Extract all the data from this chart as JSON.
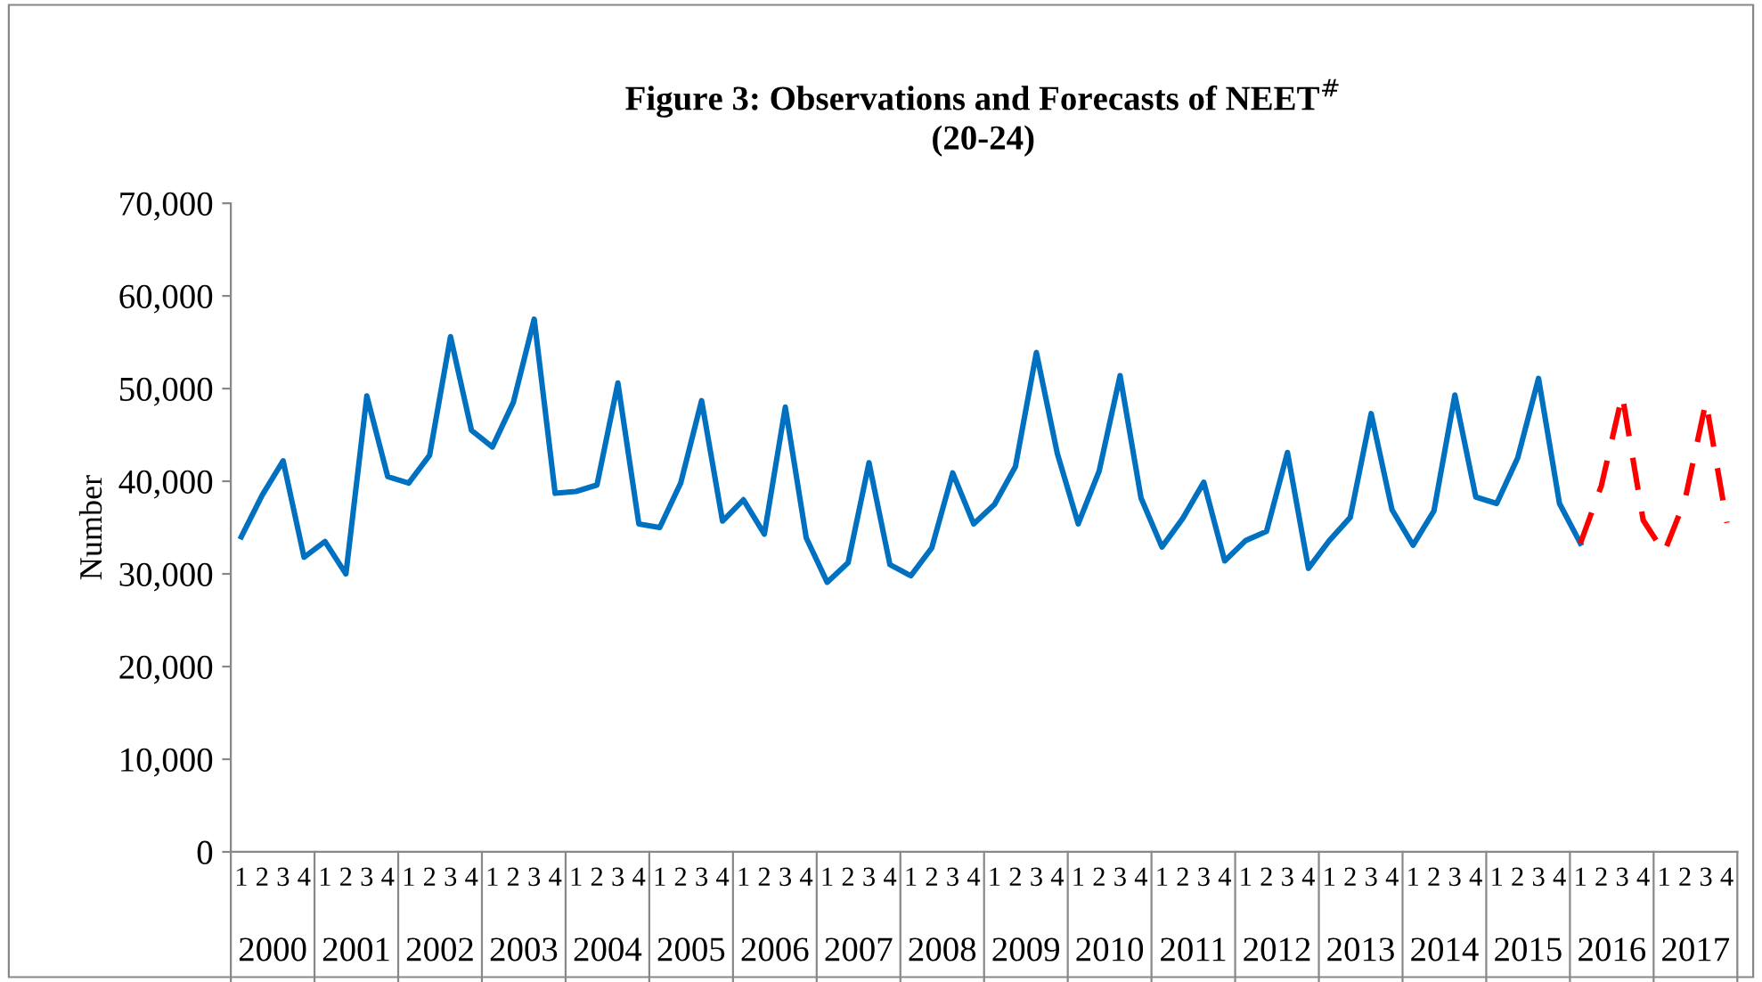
{
  "chart_data": {
    "type": "line",
    "title": "Figure 3: Observations and Forecasts of NEET$^{#}$\n(20-24)",
    "ylabel": "Number",
    "categories": [
      "1",
      "2",
      "3",
      "4",
      "1",
      "2",
      "3",
      "4",
      "1",
      "2",
      "3",
      "4",
      "1",
      "2",
      "3",
      "4",
      "1",
      "2",
      "3",
      "4",
      "1",
      "2",
      "3",
      "4",
      "1",
      "2",
      "3",
      "4",
      "1",
      "2",
      "3",
      "4",
      "1",
      "2",
      "3",
      "4",
      "1",
      "2",
      "3",
      "4",
      "1",
      "2",
      "3",
      "4",
      "1",
      "2",
      "3",
      "4",
      "1",
      "2",
      "3",
      "4",
      "1",
      "2",
      "3",
      "4",
      "1",
      "2",
      "3",
      "4",
      "1",
      "2",
      "3",
      "4",
      "1",
      "2",
      "3",
      "4",
      "1",
      "2",
      "3",
      "4"
    ],
    "annotations": [
      "2000",
      "2001",
      "2002",
      "2003",
      "2004",
      "2005",
      "2006",
      "2007",
      "2008",
      "2009",
      "2010",
      "2011",
      "2012",
      "2013",
      "2014",
      "2015",
      "2016",
      "2017"
    ],
    "series": [
      {
        "color": "#0070c0",
        "line_style": "solid",
        "values": [
          34000,
          38500,
          42200,
          31800,
          33500,
          30000,
          49200,
          40500,
          39800,
          42800,
          55600,
          45500,
          43700,
          48500,
          57500,
          38700,
          38900,
          39600,
          50600,
          35400,
          35000,
          39800,
          48700,
          35700,
          38000,
          34300,
          48000,
          33900,
          29100,
          31200,
          42000,
          31000,
          29800,
          32800,
          40900,
          35400,
          37500,
          41600,
          53900,
          43000,
          35400,
          41100,
          51400,
          38200,
          32900,
          36000,
          39900,
          31400,
          33600,
          34600,
          43100,
          30600,
          33600,
          36100,
          47300,
          36900,
          33100,
          36800,
          49300,
          38300,
          37600,
          42500,
          51100,
          37600,
          33300,
          null,
          null,
          null,
          null,
          null,
          null,
          null
        ]
      },
      {
        "color": "#ff0000",
        "line_style": "dashed",
        "values": [
          null,
          null,
          null,
          null,
          null,
          null,
          null,
          null,
          null,
          null,
          null,
          null,
          null,
          null,
          null,
          null,
          null,
          null,
          null,
          null,
          null,
          null,
          null,
          null,
          null,
          null,
          null,
          null,
          null,
          null,
          null,
          null,
          null,
          null,
          null,
          null,
          null,
          null,
          null,
          null,
          null,
          null,
          null,
          null,
          null,
          null,
          null,
          null,
          null,
          null,
          null,
          null,
          null,
          null,
          null,
          null,
          null,
          null,
          null,
          null,
          null,
          null,
          null,
          null,
          33300,
          39500,
          49300,
          35800,
          32300,
          38000,
          48600,
          35500
        ]
      }
    ],
    "ylim": [
      0,
      70000
    ],
    "yticks": [
      {
        "value": 0,
        "label": "0"
      },
      {
        "value": 10000,
        "label": "10,000"
      },
      {
        "value": 20000,
        "label": "20,000"
      },
      {
        "value": 30000,
        "label": "30,000"
      },
      {
        "value": 40000,
        "label": "40,000"
      },
      {
        "value": 50000,
        "label": "50,000"
      },
      {
        "value": 60000,
        "label": "60,000"
      },
      {
        "value": 70000,
        "label": "70,000"
      }
    ],
    "grid": false,
    "legend": false,
    "marker": "none"
  }
}
